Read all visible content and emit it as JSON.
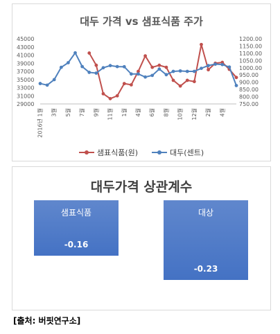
{
  "source": "[출처: 버핏연구소]",
  "legend_colors": {
    "sampyo": "#c0504d",
    "daedu": "#4f81bd"
  },
  "corr_color": "#4472c4",
  "chart_data": [
    {
      "type": "line",
      "title": "대두 가격 vs 샘표식품 주가",
      "x_tick_labels": [
        "2016년 1월",
        "3월",
        "5월",
        "7월",
        "9월",
        "11월",
        "1월",
        "4월",
        "6월",
        "8월",
        "10월",
        "12월",
        "2월",
        "4월"
      ],
      "y_left_ticks": [
        "45000",
        "43000",
        "41000",
        "39000",
        "37000",
        "35000",
        "33000",
        "31000",
        "29000"
      ],
      "y_left_range": [
        29000,
        45000
      ],
      "y_right_ticks": [
        "1200.00",
        "1150.00",
        "1100.00",
        "1050.00",
        "1000.00",
        "950.00",
        "900.00",
        "850.00",
        "800.00",
        "750.00"
      ],
      "y_right_range": [
        750,
        1200
      ],
      "series": [
        {
          "name": "샘표식품(원)",
          "axis": "left",
          "x_index": [
            7,
            8,
            9,
            10,
            11,
            12,
            13,
            14,
            15,
            16,
            17,
            18,
            19,
            20,
            21,
            22,
            23,
            24,
            25,
            26,
            27,
            28
          ],
          "values": [
            41500,
            38500,
            31500,
            30300,
            31000,
            34000,
            33700,
            37000,
            40800,
            38000,
            38500,
            38000,
            34800,
            33400,
            34800,
            34500,
            43600,
            37400,
            39000,
            39200,
            37500,
            35500
          ]
        },
        {
          "name": "대두(센트)",
          "axis": "right",
          "x_index": [
            0,
            1,
            2,
            3,
            4,
            5,
            6,
            7,
            8,
            9,
            10,
            11,
            12,
            13,
            14,
            15,
            16,
            17,
            18,
            19,
            20,
            21,
            22,
            23,
            24,
            25,
            26,
            27,
            28
          ],
          "values": [
            891,
            880,
            918,
            1003,
            1035,
            1103,
            1008,
            968,
            963,
            1000,
            1015,
            1008,
            1007,
            957,
            957,
            936,
            947,
            991,
            952,
            975,
            978,
            975,
            975,
            996,
            1015,
            1025,
            1022,
            1005,
            877
          ]
        }
      ]
    },
    {
      "type": "bar",
      "title": "대두가격 상관계수",
      "categories": [
        "샘표식품",
        "대상"
      ],
      "values": [
        -0.16,
        -0.23
      ],
      "value_labels": [
        "-0.16",
        "-0.23"
      ]
    }
  ]
}
